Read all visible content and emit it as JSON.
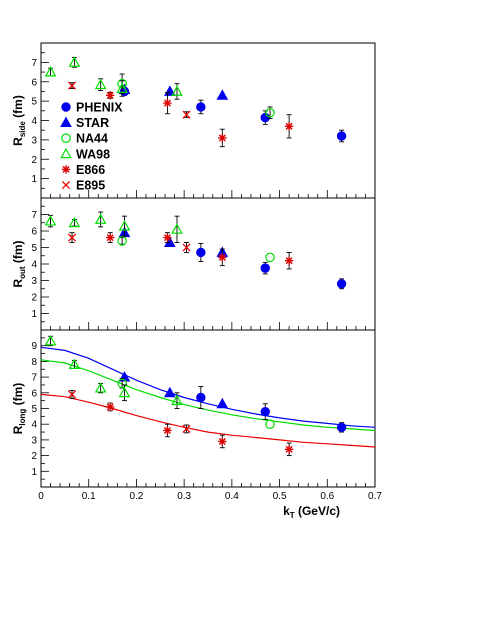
{
  "chart_data": [
    {
      "type": "scatter",
      "ylabel_main": "R",
      "ylabel_sub": "side",
      "ylabel_unit": "(fm)",
      "xlim": [
        0,
        0.7
      ],
      "ylim": [
        0,
        8
      ],
      "yticks": [
        "1",
        "2",
        "3",
        "4",
        "5",
        "6",
        "7"
      ],
      "grid": false,
      "legend_position": "left",
      "legend": [
        {
          "name": "PHENIX",
          "marker": "circle-filled",
          "color": "#0000ee"
        },
        {
          "name": "STAR",
          "marker": "triangle-filled",
          "color": "#0000ee"
        },
        {
          "name": "NA44",
          "marker": "circle-open",
          "color": "#00dd00"
        },
        {
          "name": "WA98",
          "marker": "triangle-open",
          "color": "#00dd00"
        },
        {
          "name": "E866",
          "marker": "star",
          "color": "#dd0000"
        },
        {
          "name": "E895",
          "marker": "cross",
          "color": "#ee0000"
        }
      ],
      "series": [
        {
          "name": "PHENIX",
          "points": [
            [
              0.175,
              5.5,
              0.2
            ],
            [
              0.335,
              4.7,
              0.35
            ],
            [
              0.47,
              4.15,
              0.35
            ],
            [
              0.63,
              3.2,
              0.3
            ]
          ]
        },
        {
          "name": "STAR",
          "points": [
            [
              0.175,
              5.6,
              0
            ],
            [
              0.27,
              5.5,
              0
            ],
            [
              0.38,
              5.3,
              0
            ]
          ]
        },
        {
          "name": "NA44",
          "points": [
            [
              0.17,
              5.9,
              0.5
            ],
            [
              0.48,
              4.4,
              0.3
            ]
          ]
        },
        {
          "name": "WA98",
          "points": [
            [
              0.02,
              6.5,
              0.2
            ],
            [
              0.07,
              7.0,
              0.25
            ],
            [
              0.125,
              5.85,
              0.3
            ],
            [
              0.17,
              5.65,
              0.4
            ],
            [
              0.285,
              5.5,
              0.4
            ]
          ]
        },
        {
          "name": "E866",
          "points": [
            [
              0.145,
              5.3,
              0.15
            ],
            [
              0.265,
              4.9,
              0.55
            ],
            [
              0.38,
              3.1,
              0.45
            ],
            [
              0.52,
              3.7,
              0.6
            ]
          ]
        },
        {
          "name": "E895",
          "points": [
            [
              0.065,
              5.8,
              0.15
            ],
            [
              0.305,
              4.3,
              0.15
            ]
          ]
        }
      ]
    },
    {
      "type": "scatter",
      "ylabel_main": "R",
      "ylabel_sub": "out",
      "ylabel_unit": "(fm)",
      "xlim": [
        0,
        0.7
      ],
      "ylim": [
        0,
        8
      ],
      "yticks": [
        "1",
        "2",
        "3",
        "4",
        "5",
        "6",
        "7"
      ],
      "grid": false,
      "series": [
        {
          "name": "PHENIX",
          "points": [
            [
              0.335,
              4.7,
              0.55
            ],
            [
              0.47,
              3.75,
              0.35
            ],
            [
              0.63,
              2.8,
              0.3
            ]
          ]
        },
        {
          "name": "STAR",
          "points": [
            [
              0.175,
              5.9,
              0
            ],
            [
              0.27,
              5.3,
              0
            ],
            [
              0.38,
              4.7,
              0
            ]
          ]
        },
        {
          "name": "NA44",
          "points": [
            [
              0.17,
              5.4,
              0.2
            ],
            [
              0.48,
              4.4,
              0
            ]
          ]
        },
        {
          "name": "WA98",
          "points": [
            [
              0.02,
              6.6,
              0.35
            ],
            [
              0.07,
              6.5,
              0.2
            ],
            [
              0.125,
              6.7,
              0.45
            ],
            [
              0.175,
              6.3,
              0.6
            ],
            [
              0.285,
              6.1,
              0.8
            ]
          ]
        },
        {
          "name": "E866",
          "points": [
            [
              0.145,
              5.6,
              0.3
            ],
            [
              0.265,
              5.6,
              0.3
            ],
            [
              0.38,
              4.4,
              0.5
            ],
            [
              0.52,
              4.2,
              0.5
            ]
          ]
        },
        {
          "name": "E895",
          "points": [
            [
              0.065,
              5.6,
              0.3
            ],
            [
              0.305,
              5.0,
              0.3
            ]
          ]
        }
      ]
    },
    {
      "type": "scatter",
      "ylabel_main": "R",
      "ylabel_sub": "long",
      "ylabel_unit": "(fm)",
      "xlabel_main": "k",
      "xlabel_sub": "T",
      "xlabel_unit": "(GeV/c)",
      "xlim": [
        0,
        0.7
      ],
      "ylim": [
        0,
        10
      ],
      "yticks": [
        "1",
        "2",
        "3",
        "4",
        "5",
        "6",
        "7",
        "8",
        "9"
      ],
      "xticks": [
        "0",
        "0.1",
        "0.2",
        "0.3",
        "0.4",
        "0.5",
        "0.6",
        "0.7"
      ],
      "grid": false,
      "series": [
        {
          "name": "PHENIX",
          "points": [
            [
              0.335,
              5.7,
              0.7
            ],
            [
              0.47,
              4.8,
              0.5
            ],
            [
              0.63,
              3.8,
              0.3
            ]
          ]
        },
        {
          "name": "STAR",
          "points": [
            [
              0.175,
              7.0,
              0
            ],
            [
              0.27,
              6.0,
              0
            ],
            [
              0.38,
              5.3,
              0
            ]
          ]
        },
        {
          "name": "NA44",
          "points": [
            [
              0.17,
              6.6,
              0.3
            ],
            [
              0.48,
              4.0,
              0
            ]
          ]
        },
        {
          "name": "WA98",
          "points": [
            [
              0.02,
              9.3,
              0.3
            ],
            [
              0.07,
              7.8,
              0.25
            ],
            [
              0.125,
              6.3,
              0.3
            ],
            [
              0.175,
              6.0,
              0.5
            ],
            [
              0.285,
              5.5,
              0.5
            ]
          ]
        },
        {
          "name": "E866",
          "points": [
            [
              0.145,
              5.1,
              0.25
            ],
            [
              0.265,
              3.6,
              0.4
            ],
            [
              0.38,
              2.9,
              0.4
            ],
            [
              0.52,
              2.4,
              0.4
            ]
          ]
        },
        {
          "name": "E895",
          "points": [
            [
              0.065,
              5.9,
              0.25
            ],
            [
              0.305,
              3.7,
              0.25
            ]
          ]
        }
      ],
      "curves": [
        {
          "color": "#0000ee",
          "x": [
            0,
            0.05,
            0.1,
            0.15,
            0.2,
            0.25,
            0.3,
            0.35,
            0.4,
            0.45,
            0.5,
            0.55,
            0.6,
            0.65,
            0.7
          ],
          "y": [
            8.9,
            8.7,
            8.2,
            7.5,
            6.8,
            6.2,
            5.7,
            5.3,
            4.95,
            4.65,
            4.4,
            4.2,
            4.05,
            3.9,
            3.8
          ]
        },
        {
          "color": "#00dd00",
          "x": [
            0,
            0.05,
            0.1,
            0.15,
            0.2,
            0.25,
            0.3,
            0.35,
            0.4,
            0.45,
            0.5,
            0.55,
            0.6,
            0.65,
            0.7
          ],
          "y": [
            8.1,
            7.9,
            7.4,
            6.8,
            6.2,
            5.7,
            5.25,
            4.9,
            4.6,
            4.35,
            4.15,
            3.95,
            3.8,
            3.7,
            3.6
          ]
        },
        {
          "color": "#ee0000",
          "x": [
            0,
            0.05,
            0.1,
            0.15,
            0.2,
            0.25,
            0.3,
            0.35,
            0.4,
            0.45,
            0.5,
            0.55,
            0.6,
            0.65,
            0.7
          ],
          "y": [
            5.9,
            5.75,
            5.4,
            5.0,
            4.55,
            4.15,
            3.8,
            3.5,
            3.3,
            3.15,
            3.0,
            2.85,
            2.75,
            2.65,
            2.55
          ]
        }
      ]
    }
  ]
}
